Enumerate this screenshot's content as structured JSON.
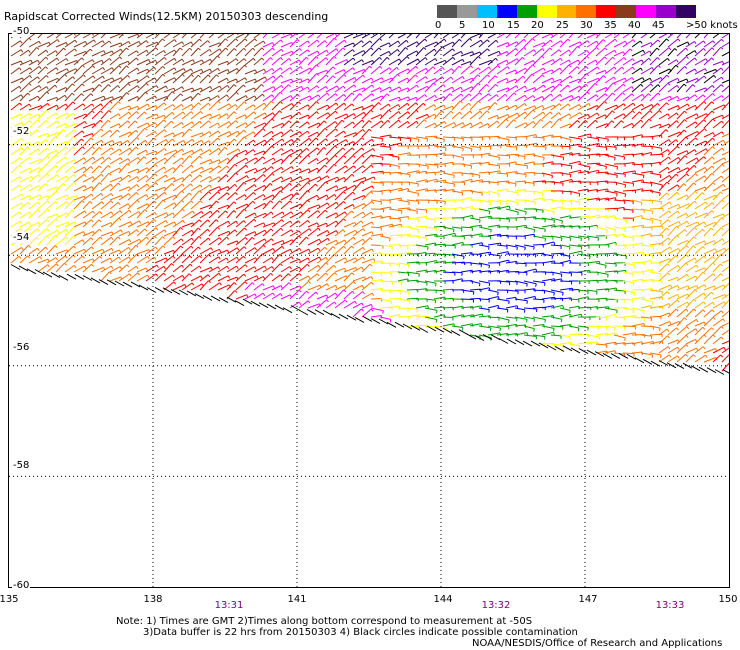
{
  "title": "Rapidscat Corrected Winds(12.5KM) 20150303 descending",
  "colorbar": {
    "colors": [
      "#555555",
      "#999999",
      "#00bfff",
      "#0000ff",
      "#00a000",
      "#ffff00",
      "#ffb000",
      "#ff7000",
      "#ff0000",
      "#8b3a1a",
      "#ff00ff",
      "#9900cc",
      "#330066"
    ],
    "labels": [
      "0",
      "5",
      "10",
      "15",
      "20",
      "25",
      "30",
      "35",
      "40",
      "45",
      ">50 knots"
    ]
  },
  "map": {
    "lat_labels": [
      "-50",
      "-52",
      "-54",
      "-56",
      "-58",
      "-60"
    ],
    "lon_labels": [
      "135",
      "138",
      "141",
      "144",
      "147",
      "150"
    ],
    "lat_range": [
      -60,
      -50
    ],
    "lon_range": [
      135,
      150
    ],
    "grid": true
  },
  "times": [
    "13:31",
    "13:32",
    "13:33"
  ],
  "notes": [
    "Note: 1) Times are GMT 2)Times along bottom correspond to measurement at -50S",
    "3)Data buffer is 22 hrs from 20150303 4) Black circles indicate possible contamination"
  ],
  "credit": "NOAA/NESDIS/Office of Research and Applications"
}
